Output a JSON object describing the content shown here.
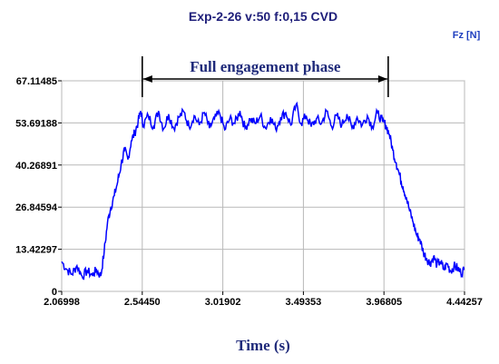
{
  "chart_data": {
    "type": "line",
    "title": "Exp-2-26 v:50  f:0,15 CVD",
    "ylabel": "Fz [N]",
    "xlabel": "Time (s)",
    "xlim": [
      2.06998,
      4.44257
    ],
    "ylim": [
      0,
      67.11485
    ],
    "x_ticks": [
      "2.06998",
      "2.54450",
      "3.01902",
      "3.49353",
      "3.96805",
      "4.44257"
    ],
    "y_ticks": [
      "0",
      "13.42297",
      "26.84594",
      "40.26891",
      "53.69188",
      "67.11485"
    ],
    "x_tick_values": [
      2.06998,
      2.5445,
      3.01902,
      3.49353,
      3.96805,
      4.44257
    ],
    "y_tick_values": [
      0,
      13.42297,
      26.84594,
      40.26891,
      53.69188,
      67.11485
    ],
    "grid": true,
    "line_color": "#0000ff",
    "annotation": {
      "text": "Full engagement phase",
      "x_start": 2.5445,
      "x_end": 3.993
    },
    "series": [
      {
        "x": [
          2.07,
          2.1,
          2.13,
          2.16,
          2.19,
          2.22,
          2.25,
          2.275,
          2.3,
          2.32,
          2.34,
          2.36,
          2.38,
          2.4,
          2.42,
          2.44,
          2.46,
          2.48,
          2.5,
          2.52,
          2.535,
          2.55,
          2.58,
          2.61,
          2.64,
          2.67,
          2.7,
          2.73,
          2.76,
          2.79,
          2.82,
          2.85,
          2.88,
          2.91,
          2.94,
          2.97,
          3.0,
          3.03,
          3.06,
          3.09,
          3.12,
          3.15,
          3.18,
          3.21,
          3.24,
          3.27,
          3.3,
          3.33,
          3.36,
          3.39,
          3.42,
          3.45,
          3.48,
          3.51,
          3.54,
          3.57,
          3.6,
          3.63,
          3.66,
          3.69,
          3.72,
          3.75,
          3.78,
          3.81,
          3.84,
          3.87,
          3.9,
          3.93,
          3.96,
          3.98,
          4.0,
          4.02,
          4.04,
          4.06,
          4.08,
          4.1,
          4.12,
          4.14,
          4.16,
          4.18,
          4.2,
          4.22,
          4.24,
          4.26,
          4.28,
          4.3,
          4.32,
          4.34,
          4.36,
          4.38,
          4.4,
          4.42,
          4.44
        ],
        "y": [
          9.5,
          7.0,
          5.5,
          8.2,
          4.8,
          6.5,
          5.2,
          6.8,
          4.9,
          12.5,
          22.0,
          27.0,
          30.5,
          35.0,
          40.5,
          45.0,
          42.0,
          48.0,
          50.5,
          54.0,
          57.5,
          53.0,
          56.0,
          52.5,
          57.5,
          51.8,
          56.5,
          52.0,
          55.5,
          57.2,
          52.5,
          56.0,
          53.0,
          57.0,
          52.0,
          55.0,
          56.8,
          51.5,
          55.0,
          53.5,
          57.5,
          52.0,
          55.0,
          53.5,
          56.0,
          52.0,
          55.5,
          51.8,
          55.5,
          57.0,
          53.0,
          59.5,
          53.5,
          56.0,
          52.5,
          55.0,
          53.5,
          57.5,
          52.5,
          56.0,
          53.0,
          56.5,
          52.0,
          55.5,
          53.0,
          56.0,
          52.5,
          57.0,
          54.0,
          53.0,
          50.0,
          45.0,
          41.0,
          37.0,
          33.5,
          30.0,
          25.5,
          22.0,
          18.0,
          16.5,
          12.5,
          10.5,
          9.0,
          11.0,
          8.5,
          9.5,
          7.0,
          8.8,
          6.5,
          8.0,
          7.5,
          6.0,
          6.8
        ]
      }
    ]
  }
}
